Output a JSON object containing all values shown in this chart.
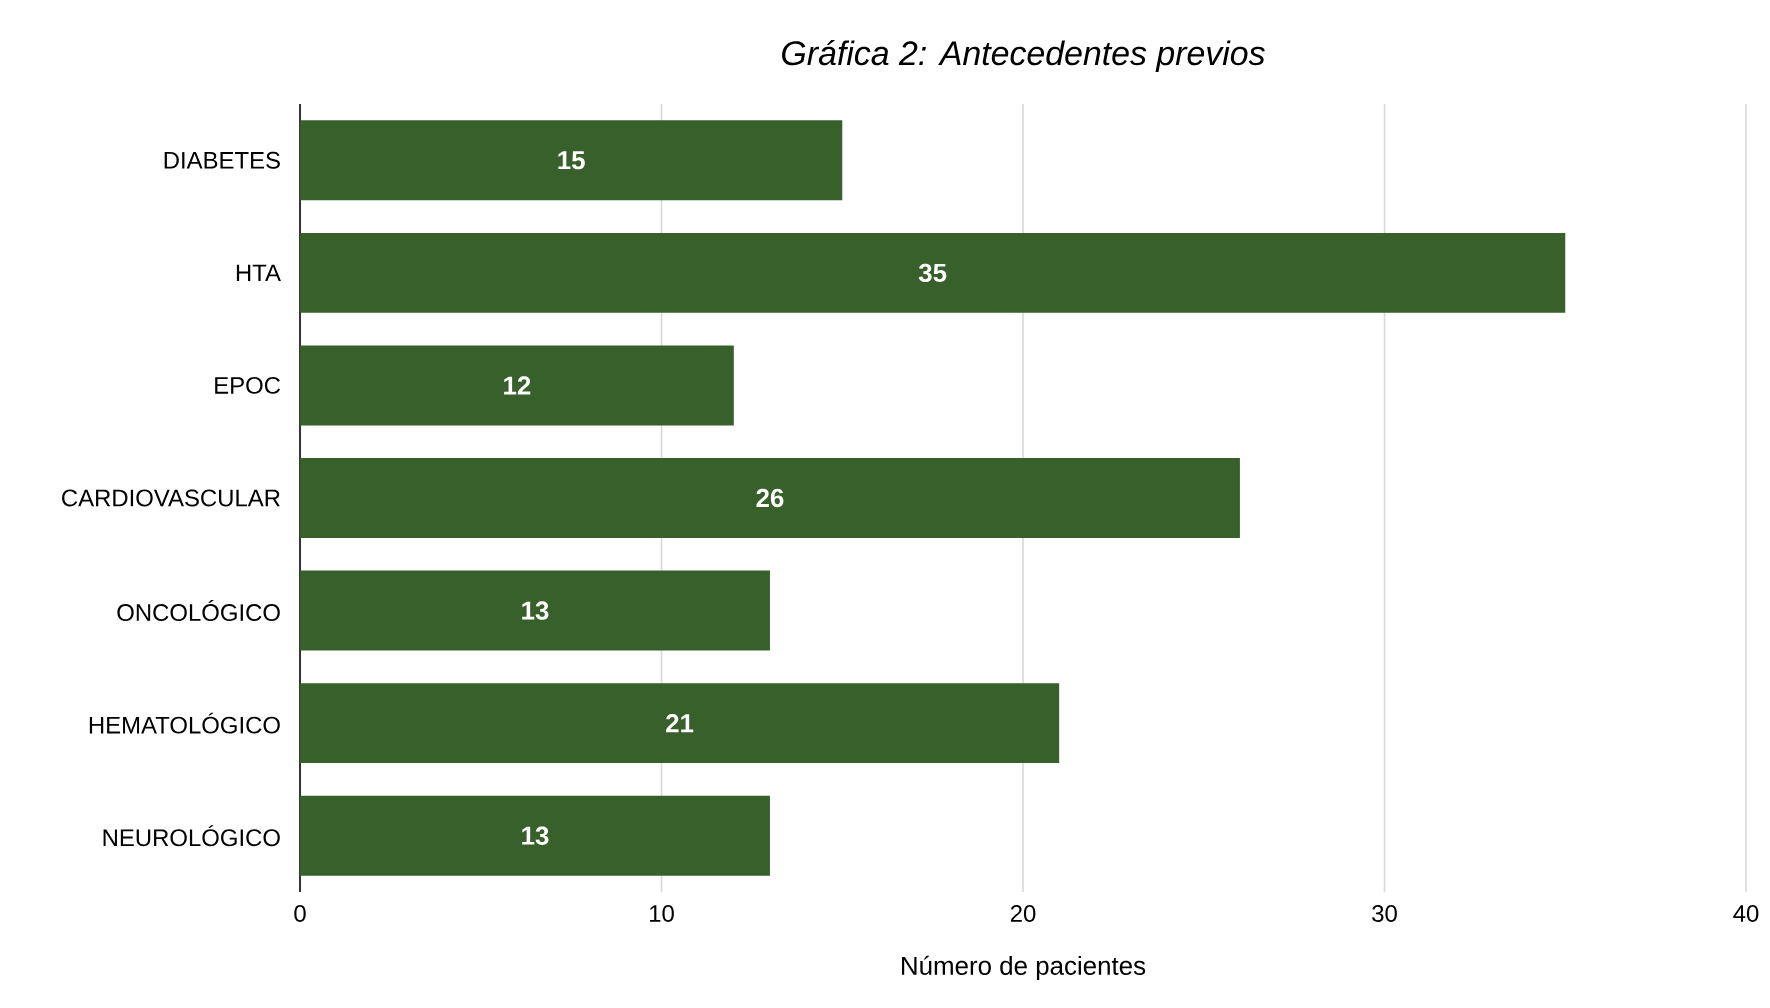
{
  "chart_data": {
    "type": "bar",
    "orientation": "horizontal",
    "title": "*Gráfica 2: Antecedentes previos*",
    "xlabel": "Número de pacientes",
    "categories": [
      "DIABETES",
      "HTA",
      "EPOC",
      "CARDIOVASCULAR",
      "ONCOLÓGICO",
      "HEMATOLÓGICO",
      "NEUROLÓGICO"
    ],
    "values": [
      15,
      35,
      12,
      26,
      13,
      21,
      13
    ],
    "color": "#38602b",
    "data_labels": true,
    "xlim": [
      0,
      40
    ],
    "xticks": [
      0,
      10,
      20,
      30,
      40
    ],
    "grid": "x"
  }
}
